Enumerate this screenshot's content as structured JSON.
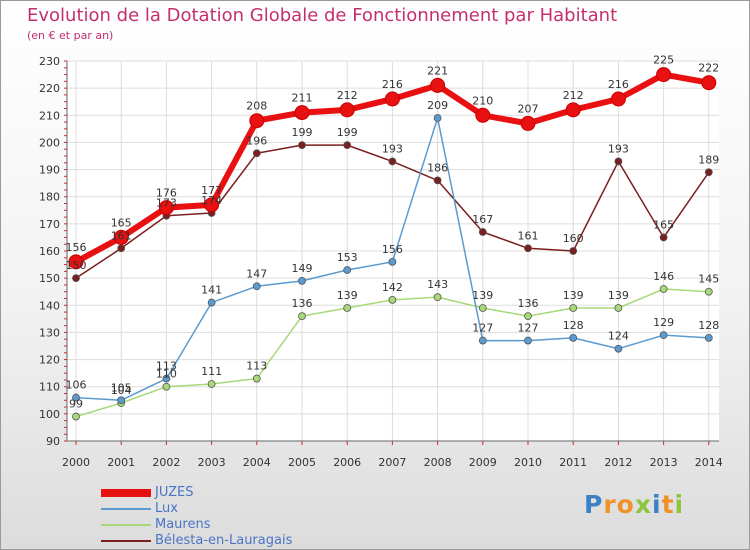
{
  "title": "Evolution de la Dotation Globale de Fonctionnement par Habitant",
  "subtitle": "(en € et par an)",
  "logo": "Proxiti",
  "chart_data": {
    "type": "line",
    "title": "Evolution de la Dotation Globale de Fonctionnement par Habitant",
    "subtitle": "(en € et par an)",
    "xlabel": "",
    "ylabel": "",
    "x": [
      "2000",
      "2001",
      "2002",
      "2003",
      "2004",
      "2005",
      "2006",
      "2007",
      "2008",
      "2009",
      "2010",
      "2011",
      "2012",
      "2013",
      "2014"
    ],
    "ylim": [
      90,
      230
    ],
    "yticks": [
      90,
      100,
      110,
      120,
      130,
      140,
      150,
      160,
      170,
      180,
      190,
      200,
      210,
      220,
      230
    ],
    "grid": true,
    "legend_position": "bottom-left",
    "series": [
      {
        "name": "JUZES",
        "color": "#e81010",
        "values": [
          156,
          165,
          176,
          177,
          208,
          211,
          212,
          216,
          221,
          210,
          207,
          212,
          216,
          225,
          222
        ]
      },
      {
        "name": "Lux",
        "color": "#5b9bd0",
        "values": [
          106,
          105,
          113,
          141,
          147,
          149,
          153,
          156,
          209,
          127,
          127,
          128,
          124,
          129,
          128
        ]
      },
      {
        "name": "Maurens",
        "color": "#a8d878",
        "values": [
          99,
          104,
          110,
          111,
          113,
          136,
          139,
          142,
          143,
          139,
          136,
          139,
          139,
          146,
          145
        ]
      },
      {
        "name": "Bélesta-en-Lauragais",
        "color": "#7a1f1f",
        "values": [
          150,
          161,
          173,
          174,
          196,
          199,
          199,
          193,
          186,
          167,
          161,
          160,
          193,
          165,
          189
        ]
      }
    ]
  }
}
